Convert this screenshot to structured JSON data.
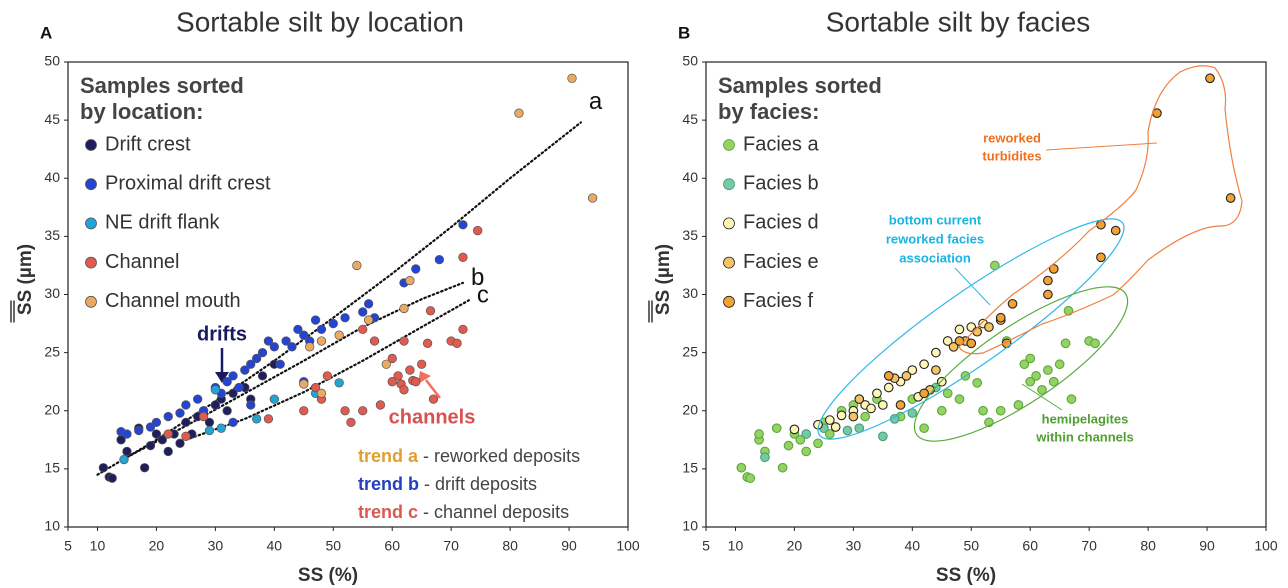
{
  "chart_data": [
    {
      "type": "scatter",
      "panel": "A",
      "title": "Sortable silt by location",
      "xlabel": "SS (%)",
      "ylabel": "SS (µm)",
      "xlim": [
        5,
        100
      ],
      "xticks": [
        5,
        10,
        20,
        30,
        40,
        50,
        60,
        70,
        80,
        90,
        100
      ],
      "ylim": [
        10,
        50
      ],
      "yticks": [
        10,
        15,
        20,
        25,
        30,
        35,
        40,
        45,
        50
      ],
      "legend_title": [
        "Samples sorted",
        "by location:"
      ],
      "series": [
        {
          "name": "Drift crest",
          "color": "#1f1f5e",
          "edgecolor": "#555555",
          "x": [
            11,
            12,
            12.5,
            14,
            15,
            17,
            18,
            19,
            20,
            21,
            22,
            23,
            24,
            25,
            26,
            27,
            28,
            29,
            30,
            31,
            32,
            33,
            35,
            36,
            38,
            40
          ],
          "y": [
            15.1,
            14.3,
            14.2,
            17.5,
            16.5,
            18.5,
            15.1,
            17,
            18,
            17.5,
            16.5,
            18,
            17.2,
            19,
            18,
            19.5,
            20,
            19,
            20.5,
            21,
            20,
            21.5,
            22,
            21,
            23,
            24
          ]
        },
        {
          "name": "Proximal drift crest",
          "color": "#2444d4",
          "edgecolor": "#555555",
          "x": [
            14,
            15,
            17,
            19,
            20,
            22,
            24,
            25,
            27,
            28,
            30,
            31,
            32,
            33,
            34,
            35,
            36,
            37,
            38,
            39,
            40,
            41,
            42,
            43,
            44,
            45,
            46,
            47,
            48,
            50,
            52,
            55,
            56,
            57,
            62,
            64,
            68,
            72,
            45,
            33,
            36
          ],
          "y": [
            18.2,
            18,
            18.3,
            18.6,
            19,
            19.5,
            19.8,
            20.5,
            21,
            20,
            22,
            21.5,
            22.5,
            23,
            22,
            23.5,
            24,
            24.5,
            25,
            26,
            25.5,
            24,
            26,
            25.5,
            27,
            26.5,
            26,
            27.8,
            27,
            27.5,
            28,
            28.5,
            29.2,
            28,
            31,
            32.2,
            33,
            36,
            22.5,
            19,
            20.5
          ]
        },
        {
          "name": "NE drift flank",
          "color": "#22a4d4",
          "edgecolor": "#555555",
          "x": [
            14.5,
            30,
            31,
            37,
            40,
            47,
            51,
            29
          ],
          "y": [
            15.8,
            21.8,
            18.5,
            19.3,
            21,
            21.5,
            22.4,
            18.3
          ]
        },
        {
          "name": "Channel",
          "color": "#e05a50",
          "edgecolor": "#555555",
          "x": [
            22,
            25,
            28,
            39,
            45,
            47,
            48,
            49,
            52,
            53,
            55,
            58,
            60,
            60,
            61,
            61.5,
            62,
            63,
            63.5,
            64,
            65,
            66,
            66.5,
            67,
            70,
            71,
            72,
            74.5,
            72,
            57,
            55,
            62
          ],
          "y": [
            18,
            17.8,
            19.5,
            19.3,
            20,
            22,
            21,
            23,
            20,
            19,
            20,
            20.5,
            22.5,
            24.5,
            23,
            22.3,
            21.8,
            23.5,
            22.6,
            22.5,
            24,
            25.8,
            28.6,
            21,
            26,
            25.8,
            27,
            35.5,
            33.2,
            26,
            27,
            26
          ]
        },
        {
          "name": "Channel mouth",
          "color": "#eaaa62",
          "edgecolor": "#555555",
          "x": [
            90.5,
            81.5,
            94,
            54,
            63,
            48,
            45,
            56,
            59,
            51,
            62,
            46,
            48
          ],
          "y": [
            48.6,
            45.6,
            38.3,
            32.5,
            31.2,
            21.5,
            22.3,
            27.8,
            24,
            26.5,
            28.8,
            25.5,
            26
          ]
        }
      ],
      "trend_lines": [
        {
          "label": "a",
          "x": [
            10,
            20,
            30,
            40,
            50,
            60,
            70,
            80,
            92
          ],
          "y": [
            14.5,
            17.5,
            20.8,
            24.3,
            28,
            31.8,
            35.8,
            40,
            44.8
          ]
        },
        {
          "label": "b",
          "x": [
            15,
            25,
            35,
            45,
            55,
            65,
            72
          ],
          "y": [
            16,
            18.7,
            21.5,
            24.3,
            27.2,
            29.6,
            31
          ]
        },
        {
          "label": "c",
          "x": [
            25,
            35,
            45,
            55,
            65,
            73
          ],
          "y": [
            17.5,
            19.3,
            21.6,
            24.3,
            27.2,
            29.5
          ]
        }
      ],
      "annotations": [
        "drifts",
        "channels"
      ],
      "notes": [
        {
          "term": "trend a",
          "text": " - reworked deposits",
          "color": "#e0a030"
        },
        {
          "term": "trend b",
          "text": " - drift deposits",
          "color": "#2040c0"
        },
        {
          "term": "trend c",
          "text": " - channel deposits",
          "color": "#d85a50"
        }
      ]
    },
    {
      "type": "scatter",
      "panel": "B",
      "title": "Sortable silt by facies",
      "xlabel": "SS (%)",
      "ylabel": "SS (µm)",
      "xlim": [
        5,
        100
      ],
      "xticks": [
        5,
        10,
        20,
        30,
        40,
        50,
        60,
        70,
        80,
        90,
        100
      ],
      "ylim": [
        10,
        50
      ],
      "yticks": [
        10,
        15,
        20,
        25,
        30,
        35,
        40,
        45,
        50
      ],
      "legend_title": [
        "Samples sorted",
        "by facies:"
      ],
      "series": [
        {
          "name": "Facies a",
          "color": "#94d264",
          "edgecolor": "#5aa63a",
          "x": [
            11,
            12,
            12.5,
            14,
            15,
            14,
            17,
            18,
            19,
            20,
            21,
            22,
            24,
            25,
            26,
            28,
            30,
            32,
            34,
            38,
            40,
            42,
            45,
            48,
            49,
            52,
            53,
            54,
            55,
            58,
            60,
            60,
            61,
            62,
            63,
            64,
            65,
            66,
            66.5,
            67,
            70,
            71,
            56,
            59,
            51,
            46
          ],
          "y": [
            15.1,
            14.3,
            14.2,
            17.5,
            16.5,
            18,
            18.5,
            15.1,
            17,
            18,
            17.5,
            16.5,
            17.2,
            19,
            18,
            20,
            20.5,
            19.5,
            21,
            19.5,
            21,
            18.5,
            20,
            21,
            23,
            20,
            19,
            32.5,
            20,
            20.5,
            22.5,
            24.5,
            23,
            21.8,
            23.5,
            22.5,
            24,
            25.8,
            28.6,
            21,
            26,
            25.8,
            26,
            24,
            22.4,
            21.5
          ]
        },
        {
          "name": "Facies b",
          "color": "#74caa4",
          "edgecolor": "#4a9a7a",
          "x": [
            15,
            22,
            25,
            29,
            31,
            35,
            37,
            40,
            44
          ],
          "y": [
            16,
            18,
            18.5,
            18.3,
            18.5,
            17.8,
            19.3,
            19.8,
            22
          ]
        },
        {
          "name": "Facies d",
          "color": "#fff6b4",
          "edgecolor": "#222222",
          "x": [
            20,
            24,
            26,
            28,
            30,
            32,
            34,
            36,
            38,
            40,
            42,
            44,
            46,
            48,
            50,
            52,
            35,
            41,
            45,
            27,
            33
          ],
          "y": [
            18.4,
            18.8,
            19.2,
            19.6,
            20,
            20.5,
            21.5,
            22,
            22.5,
            23.5,
            24,
            25,
            26,
            27,
            27.2,
            27.5,
            20.5,
            21.2,
            22.5,
            18.6,
            20.2
          ]
        },
        {
          "name": "Facies e",
          "color": "#f2c464",
          "edgecolor": "#222222",
          "x": [
            30,
            37,
            39,
            43,
            47,
            49,
            51,
            53,
            55,
            31,
            44
          ],
          "y": [
            19.5,
            22.8,
            23,
            21.8,
            25.5,
            26,
            26.8,
            27.2,
            27.8,
            21,
            23.5
          ]
        },
        {
          "name": "Facies f",
          "color": "#f2a232",
          "edgecolor": "#222222",
          "x": [
            90.5,
            81.5,
            94,
            72,
            74.5,
            72,
            64,
            63,
            63,
            57,
            55,
            56,
            50,
            48,
            42,
            38,
            36
          ],
          "y": [
            48.6,
            45.6,
            38.3,
            36,
            35.5,
            33.2,
            32.2,
            31.2,
            30,
            29.2,
            28,
            25.8,
            25.8,
            26,
            21.5,
            20.5,
            23
          ]
        }
      ],
      "annotations": [
        [
          "reworked",
          "turbidites"
        ],
        [
          "bottom current",
          "reworked facies",
          "association"
        ],
        [
          "hemipelagites",
          "within channels"
        ]
      ]
    }
  ]
}
